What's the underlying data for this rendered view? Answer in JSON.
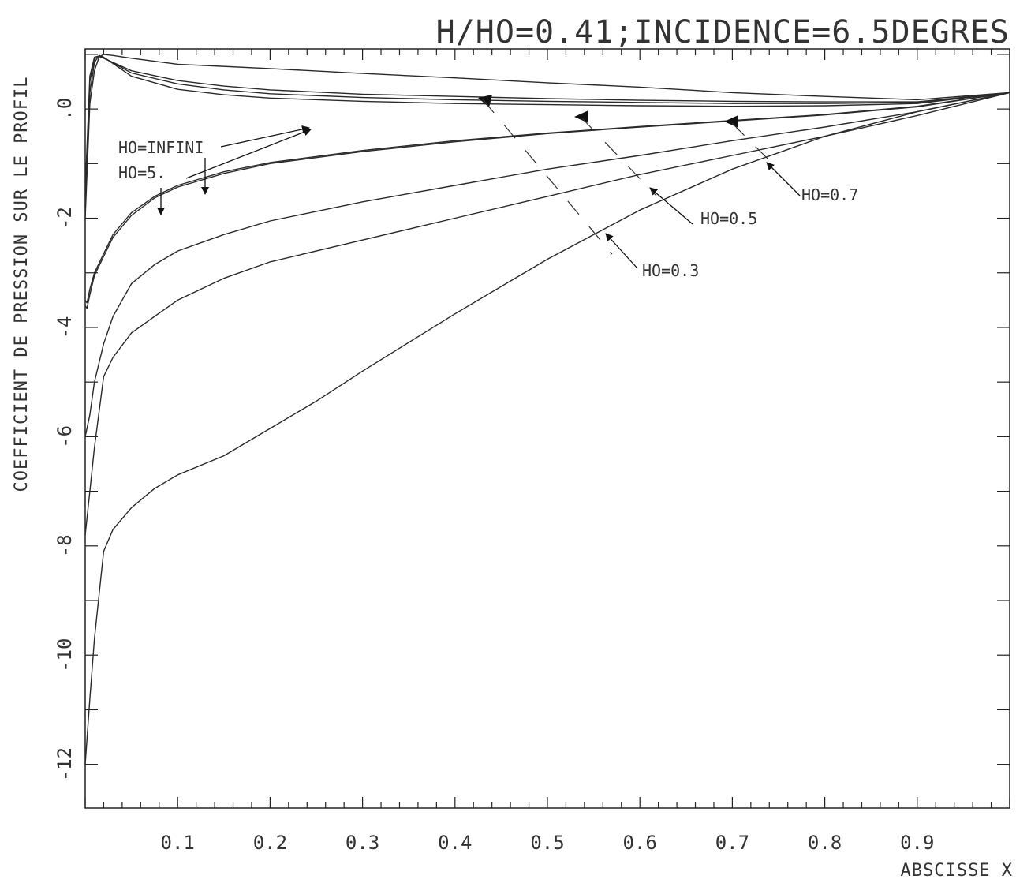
{
  "chart_data": {
    "type": "line",
    "title": "H/HO=0.41;INCIDENCE=6.5DEGRES",
    "xlabel": "ABSCISSE X",
    "ylabel": "COEFFICIENT DE PRESSION SUR LE PROFIL",
    "xlim": [
      0,
      1
    ],
    "ylim": [
      -12.8,
      1.1
    ],
    "y_inverted": true,
    "grid": false,
    "x_tick_labels": [
      "0.1",
      "0.2",
      "0.3",
      "0.4",
      "0.5",
      "0.6",
      "0.7",
      "0.8",
      "0.9"
    ],
    "y_tick_labels": [
      ".0",
      "-2",
      "-4",
      "-6",
      "-8",
      "-10",
      "-12"
    ],
    "series": [
      {
        "name": "HO=INFINI",
        "surface": "lower",
        "x": [
          0,
          0.005,
          0.01,
          0.015,
          0.02,
          0.05,
          0.1,
          0.15,
          0.2,
          0.3,
          0.4,
          0.5,
          0.6,
          0.7,
          0.8,
          0.9,
          1.0
        ],
        "y": [
          -1.5,
          0.6,
          0.95,
          0.97,
          0.93,
          0.7,
          0.52,
          0.42,
          0.35,
          0.27,
          0.23,
          0.19,
          0.16,
          0.14,
          0.13,
          0.13,
          0.3
        ]
      },
      {
        "name": "HO=INFINI",
        "surface": "upper",
        "x": [
          0,
          0.002,
          0.005,
          0.01,
          0.02,
          0.03,
          0.05,
          0.075,
          0.1,
          0.15,
          0.2,
          0.3,
          0.4,
          0.5,
          0.6,
          0.7,
          0.8,
          0.9,
          1.0
        ],
        "y": [
          -3.5,
          -3.55,
          -3.3,
          -3.0,
          -2.65,
          -2.3,
          -1.9,
          -1.6,
          -1.4,
          -1.15,
          -0.98,
          -0.76,
          -0.58,
          -0.44,
          -0.32,
          -0.21,
          -0.1,
          0.05,
          0.3
        ]
      },
      {
        "name": "HO=5.",
        "surface": "lower",
        "x": [
          0,
          0.005,
          0.01,
          0.015,
          0.02,
          0.05,
          0.1,
          0.15,
          0.2,
          0.3,
          0.4,
          0.5,
          0.6,
          0.7,
          0.8,
          0.9,
          1.0
        ],
        "y": [
          -1.6,
          0.5,
          0.92,
          0.96,
          0.94,
          0.66,
          0.46,
          0.35,
          0.28,
          0.21,
          0.17,
          0.14,
          0.12,
          0.1,
          0.1,
          0.12,
          0.3
        ]
      },
      {
        "name": "HO=5.",
        "surface": "upper",
        "x": [
          0,
          0.002,
          0.005,
          0.01,
          0.02,
          0.03,
          0.05,
          0.075,
          0.1,
          0.15,
          0.2,
          0.3,
          0.4,
          0.5,
          0.6,
          0.7,
          0.8,
          0.9,
          1.0
        ],
        "y": [
          -3.6,
          -3.65,
          -3.4,
          -3.05,
          -2.7,
          -2.35,
          -1.95,
          -1.63,
          -1.43,
          -1.18,
          -1.0,
          -0.78,
          -0.6,
          -0.45,
          -0.33,
          -0.22,
          -0.11,
          0.04,
          0.3
        ]
      },
      {
        "name": "HO=0.7",
        "surface": "lower",
        "x": [
          0,
          0.005,
          0.01,
          0.015,
          0.02,
          0.05,
          0.1,
          0.15,
          0.2,
          0.3,
          0.4,
          0.5,
          0.6,
          0.7,
          0.8,
          0.9,
          1.0
        ],
        "y": [
          -1.8,
          0.3,
          0.85,
          0.98,
          0.95,
          0.6,
          0.36,
          0.26,
          0.2,
          0.14,
          0.1,
          0.08,
          0.06,
          0.05,
          0.06,
          0.1,
          0.3
        ]
      },
      {
        "name": "HO=0.7",
        "surface": "upper",
        "x": [
          0,
          0.005,
          0.01,
          0.02,
          0.03,
          0.05,
          0.075,
          0.1,
          0.15,
          0.2,
          0.3,
          0.4,
          0.5,
          0.6,
          0.7,
          0.8,
          0.9,
          1.0
        ],
        "y": [
          -6.0,
          -5.6,
          -5.0,
          -4.3,
          -3.8,
          -3.2,
          -2.85,
          -2.6,
          -2.3,
          -2.05,
          -1.7,
          -1.4,
          -1.1,
          -0.85,
          -0.58,
          -0.33,
          -0.05,
          0.3
        ]
      },
      {
        "name": "HO=0.5",
        "surface": "lower",
        "x": [
          0,
          0.005,
          0.01,
          0.015,
          0.02,
          0.03,
          0.05,
          0.1,
          0.2,
          0.3,
          0.4,
          0.5,
          0.6,
          0.7,
          0.8,
          0.9,
          1.0
        ],
        "y": [
          -2.0,
          0.1,
          0.7,
          0.95,
          1.0,
          0.98,
          0.93,
          0.82,
          0.74,
          0.65,
          0.57,
          0.48,
          0.4,
          0.3,
          0.23,
          0.17,
          0.3
        ]
      },
      {
        "name": "HO=0.5",
        "surface": "upper",
        "x": [
          0,
          0.005,
          0.01,
          0.02,
          0.03,
          0.05,
          0.075,
          0.1,
          0.15,
          0.2,
          0.3,
          0.4,
          0.5,
          0.6,
          0.7,
          0.8,
          0.9,
          1.0
        ],
        "y": [
          -7.8,
          -7.0,
          -6.2,
          -4.9,
          -4.55,
          -4.1,
          -3.8,
          -3.5,
          -3.1,
          -2.8,
          -2.4,
          -2.0,
          -1.6,
          -1.2,
          -0.85,
          -0.5,
          -0.12,
          0.3
        ]
      },
      {
        "name": "HO=0.3",
        "surface": "upper",
        "x": [
          0,
          0.005,
          0.01,
          0.02,
          0.03,
          0.05,
          0.075,
          0.1,
          0.15,
          0.2,
          0.25,
          0.3,
          0.4,
          0.5,
          0.6,
          0.7,
          0.8,
          0.9,
          1.0
        ],
        "y": [
          -12.0,
          -10.8,
          -9.7,
          -8.1,
          -7.7,
          -7.3,
          -6.95,
          -6.7,
          -6.35,
          -5.85,
          -5.35,
          -4.8,
          -3.75,
          -2.75,
          -1.85,
          -1.1,
          -0.5,
          -0.05,
          0.3
        ]
      }
    ],
    "annotations": [
      {
        "text": "HO=INFINI"
      },
      {
        "text": "HO=5."
      },
      {
        "text": "HO=0.7"
      },
      {
        "text": "HO=0.5"
      },
      {
        "text": "HO=0.3"
      }
    ]
  }
}
